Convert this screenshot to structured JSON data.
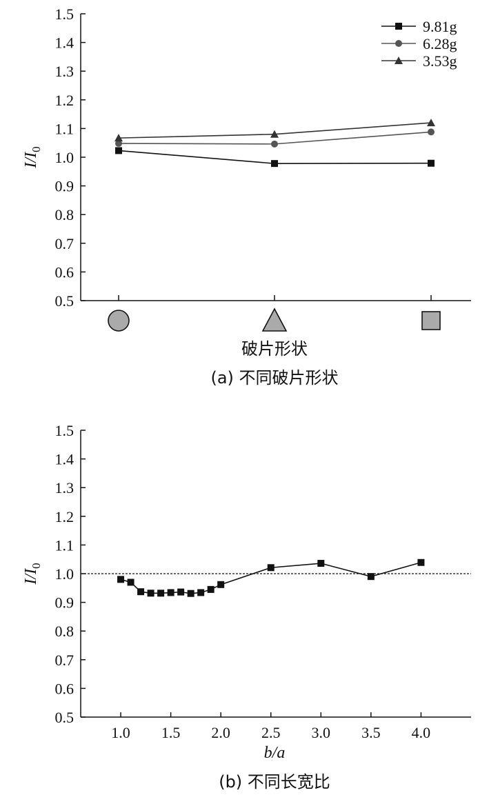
{
  "chart_data": [
    {
      "type": "line",
      "xlabel": "破片形状",
      "caption": "(a) 不同破片形状",
      "ylabel": "I/I",
      "ylabel_sub": "0",
      "ylim": [
        0.5,
        1.5
      ],
      "yticks": [
        "0.5",
        "0.6",
        "0.7",
        "0.8",
        "0.9",
        "1.0",
        "1.1",
        "1.2",
        "1.3",
        "1.4",
        "1.5"
      ],
      "categories": [
        "circle-icon",
        "triangle-icon",
        "square-icon"
      ],
      "legend_position": "top-right",
      "series": [
        {
          "name": "9.81g",
          "marker": "square",
          "color": "#111111",
          "values": [
            1.023,
            0.978,
            0.979
          ]
        },
        {
          "name": "6.28g",
          "marker": "circle",
          "color": "#555555",
          "values": [
            1.048,
            1.046,
            1.088
          ]
        },
        {
          "name": "3.53g",
          "marker": "triangle",
          "color": "#333333",
          "values": [
            1.067,
            1.08,
            1.12
          ]
        }
      ],
      "shape_fill": "#aaaaaa"
    },
    {
      "type": "line",
      "xlabel": "b/a",
      "caption": "(b) 不同长宽比",
      "ylabel": "I/I",
      "ylabel_sub": "0",
      "ylim": [
        0.5,
        1.5
      ],
      "xlim": [
        0.6,
        4.5
      ],
      "yticks": [
        "0.5",
        "0.6",
        "0.7",
        "0.8",
        "0.9",
        "1.0",
        "1.1",
        "1.2",
        "1.3",
        "1.4",
        "1.5"
      ],
      "xticks": [
        "1.0",
        "1.5",
        "2.0",
        "2.5",
        "3.0",
        "3.5",
        "4.0"
      ],
      "reference_line": 1.0,
      "series": [
        {
          "name": "",
          "marker": "square",
          "color": "#111111",
          "x": [
            1.0,
            1.1,
            1.2,
            1.3,
            1.4,
            1.5,
            1.6,
            1.7,
            1.8,
            1.9,
            2.0,
            2.5,
            3.0,
            3.5,
            4.0
          ],
          "y": [
            0.98,
            0.97,
            0.937,
            0.932,
            0.932,
            0.934,
            0.936,
            0.931,
            0.934,
            0.945,
            0.962,
            1.021,
            1.036,
            0.99,
            1.039
          ]
        }
      ]
    }
  ]
}
